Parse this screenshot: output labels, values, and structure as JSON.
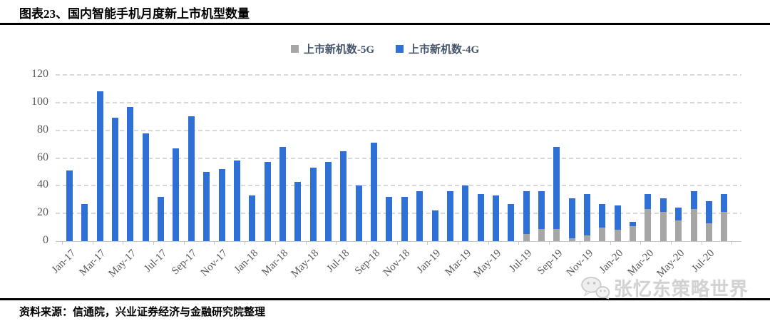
{
  "header": {
    "title": "图表23、国内智能手机月度新上市机型数量"
  },
  "legend": [
    {
      "label": "上市新机数-5G",
      "color": "#A6A6A6"
    },
    {
      "label": "上市新机数-4G",
      "color": "#2F70D6"
    }
  ],
  "chart_data": {
    "type": "bar",
    "stacked": true,
    "title": "国内智能手机月度新上市机型数量",
    "xlabel": "",
    "ylabel": "",
    "ylim": [
      0,
      120
    ],
    "y_ticks": [
      0,
      20,
      40,
      60,
      80,
      100,
      120
    ],
    "grid": "horizontal-dashed",
    "legend_position": "top-center",
    "categories": [
      "Jan-17",
      "Feb-17",
      "Mar-17",
      "Apr-17",
      "May-17",
      "Jun-17",
      "Jul-17",
      "Aug-17",
      "Sep-17",
      "Oct-17",
      "Nov-17",
      "Dec-17",
      "Jan-18",
      "Feb-18",
      "Mar-18",
      "Apr-18",
      "May-18",
      "Jun-18",
      "Jul-18",
      "Aug-18",
      "Sep-18",
      "Oct-18",
      "Nov-18",
      "Dec-18",
      "Jan-19",
      "Feb-19",
      "Mar-19",
      "Apr-19",
      "May-19",
      "Jun-19",
      "Jul-19",
      "Aug-19",
      "Sep-19",
      "Oct-19",
      "Nov-19",
      "Dec-19",
      "Jan-20",
      "Feb-20",
      "Mar-20",
      "Apr-20",
      "May-20",
      "Jun-20",
      "Jul-20",
      "Aug-20"
    ],
    "x_tick_labels": [
      "Jan-17",
      "Mar-17",
      "May-17",
      "Jul-17",
      "Sep-17",
      "Nov-17",
      "Jan-18",
      "Mar-18",
      "May-18",
      "Jul-18",
      "Sep-18",
      "Nov-18",
      "Jan-19",
      "Mar-19",
      "May-19",
      "Jul-19",
      "Sep-19",
      "Nov-19",
      "Jan-20",
      "Mar-20",
      "May-20",
      "Jul-20"
    ],
    "series": [
      {
        "name": "上市新机数-5G",
        "color": "#A6A6A6",
        "values": [
          0,
          0,
          0,
          0,
          0,
          0,
          0,
          0,
          0,
          0,
          0,
          0,
          0,
          0,
          0,
          0,
          0,
          0,
          0,
          0,
          0,
          0,
          0,
          0,
          0,
          0,
          0,
          0,
          0,
          0,
          5,
          9,
          9,
          2,
          4,
          10,
          8,
          11,
          23,
          21,
          15,
          23,
          13,
          21
        ]
      },
      {
        "name": "上市新机数-4G",
        "color": "#2F70D6",
        "values": [
          51,
          27,
          108,
          89,
          97,
          78,
          32,
          67,
          90,
          50,
          52,
          58,
          33,
          57,
          68,
          43,
          53,
          57,
          65,
          40,
          71,
          32,
          32,
          36,
          22,
          36,
          40,
          34,
          33,
          27,
          31,
          27,
          59,
          29,
          30,
          17,
          18,
          3,
          11,
          10,
          9,
          13,
          16,
          13
        ]
      }
    ]
  },
  "footer": {
    "source": "资料来源：信通院，兴业证券经济与金融研究院整理"
  },
  "watermark": {
    "text": "张忆东策略世界",
    "icon": "wechat-icon"
  }
}
